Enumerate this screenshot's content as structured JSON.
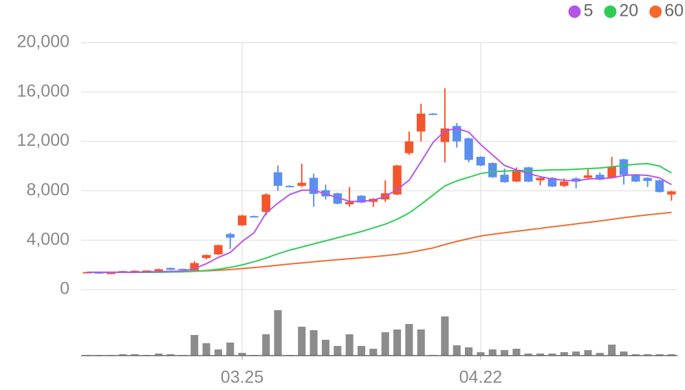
{
  "chart_data": {
    "type": "candlestick",
    "categories": [
      null,
      null,
      null,
      null,
      null,
      null,
      null,
      null,
      null,
      null,
      null,
      null,
      null,
      "03.25",
      null,
      null,
      null,
      null,
      null,
      null,
      null,
      null,
      null,
      null,
      null,
      null,
      null,
      null,
      null,
      null,
      null,
      null,
      null,
      "04.22",
      null,
      null,
      null,
      null,
      null,
      null,
      null,
      null,
      null,
      null,
      null,
      null,
      null,
      null,
      null,
      null
    ],
    "open": [
      1400,
      1400,
      1300,
      1400,
      1450,
      1480,
      1500,
      1750,
      1680,
      1500,
      2550,
      2850,
      4500,
      5200,
      5950,
      6300,
      9500,
      8400,
      8400,
      9050,
      8050,
      7800,
      6900,
      7600,
      7100,
      7300,
      7700,
      11050,
      12800,
      14250,
      11950,
      13250,
      12250,
      10750,
      10250,
      9300,
      8750,
      9900,
      8850,
      9050,
      8400,
      9000,
      9050,
      9300,
      9050,
      10550,
      9300,
      9050,
      8850,
      7700
    ],
    "high": [
      1450,
      1420,
      1380,
      1520,
      1550,
      1560,
      1700,
      1780,
      1700,
      2300,
      2850,
      3650,
      4600,
      6050,
      6000,
      7800,
      10050,
      8450,
      10200,
      9400,
      8500,
      7850,
      8300,
      7650,
      7400,
      8850,
      10100,
      12800,
      15050,
      14300,
      16300,
      13500,
      12300,
      10800,
      10300,
      9800,
      9900,
      9950,
      9100,
      9100,
      9000,
      9100,
      9800,
      9500,
      10750,
      10600,
      9350,
      9100,
      8900,
      8000
    ],
    "low": [
      1380,
      1300,
      1280,
      1380,
      1430,
      1460,
      1480,
      1580,
      1580,
      1450,
      2450,
      2800,
      3300,
      5150,
      5880,
      6000,
      8000,
      8320,
      8300,
      6700,
      7300,
      6900,
      6700,
      7000,
      6700,
      7100,
      7650,
      10900,
      12000,
      14150,
      10300,
      11500,
      10300,
      10000,
      9050,
      8650,
      8700,
      8700,
      8450,
      8300,
      8300,
      8200,
      8950,
      8850,
      9000,
      8500,
      8700,
      8300,
      7850,
      7200
    ],
    "close": [
      1420,
      1300,
      1360,
      1500,
      1530,
      1550,
      1650,
      1600,
      1620,
      2150,
      2800,
      3600,
      4200,
      6000,
      5900,
      7700,
      8400,
      8350,
      8650,
      7750,
      7550,
      6950,
      7100,
      7050,
      7350,
      7800,
      10050,
      12000,
      14250,
      14200,
      13050,
      12000,
      10500,
      10050,
      9100,
      8700,
      9650,
      8750,
      9050,
      8350,
      8750,
      8750,
      9250,
      8900,
      9950,
      9300,
      8750,
      8800,
      7900,
      7950
    ],
    "up_color": "#f4552a",
    "down_color": "#5b8ff0",
    "series": [
      {
        "name": "5",
        "color": "#b455ea",
        "values": [
          1400,
          1400,
          1400,
          1400,
          1410,
          1430,
          1450,
          1470,
          1500,
          1700,
          2100,
          2600,
          3000,
          3900,
          4600,
          6200,
          7000,
          7700,
          8050,
          8050,
          7750,
          7450,
          7150,
          7150,
          7250,
          7550,
          8100,
          8850,
          10350,
          11900,
          12850,
          13050,
          12750,
          11750,
          10900,
          10050,
          9700,
          9400,
          9150,
          8950,
          8850,
          8800,
          8950,
          9000,
          9050,
          9250,
          9300,
          9250,
          9050,
          8500
        ]
      },
      {
        "name": "20",
        "color": "#2ecc55",
        "values": [
          1400,
          1400,
          1400,
          1400,
          1400,
          1400,
          1400,
          1420,
          1440,
          1480,
          1550,
          1650,
          1800,
          2000,
          2250,
          2550,
          2900,
          3200,
          3450,
          3700,
          3950,
          4200,
          4450,
          4700,
          5000,
          5300,
          5700,
          6200,
          6900,
          7650,
          8400,
          8800,
          9100,
          9400,
          9550,
          9600,
          9650,
          9650,
          9650,
          9700,
          9700,
          9750,
          9800,
          9850,
          9950,
          10050,
          10150,
          10200,
          10000,
          9450
        ]
      },
      {
        "name": "60",
        "color": "#f26a30",
        "values": [
          1400,
          1400,
          1400,
          1400,
          1400,
          1410,
          1420,
          1430,
          1450,
          1480,
          1520,
          1560,
          1620,
          1700,
          1780,
          1870,
          1970,
          2070,
          2160,
          2250,
          2340,
          2420,
          2500,
          2580,
          2660,
          2750,
          2860,
          3000,
          3180,
          3370,
          3650,
          3900,
          4120,
          4340,
          4480,
          4600,
          4720,
          4840,
          4960,
          5080,
          5200,
          5320,
          5440,
          5560,
          5690,
          5820,
          5940,
          6050,
          6150,
          6250
        ]
      }
    ],
    "volume": [
      1,
      1,
      1,
      2,
      2,
      1,
      3,
      2,
      1,
      30,
      18,
      9,
      19,
      4,
      1,
      31,
      66,
      1,
      42,
      37,
      23,
      14,
      31,
      14,
      10,
      34,
      38,
      46,
      38,
      1,
      57,
      15,
      12,
      5,
      9,
      8,
      10,
      3,
      3,
      3,
      5,
      6,
      8,
      4,
      16,
      6,
      2,
      2,
      2,
      2
    ],
    "volume_color": "#8c8c8c",
    "ylim": [
      0,
      20000
    ],
    "yticks": [
      {
        "value": 0,
        "label": "0"
      },
      {
        "value": 4000,
        "label": "4,000"
      },
      {
        "value": 8000,
        "label": "8,000"
      },
      {
        "value": 12000,
        "label": "12,000"
      },
      {
        "value": 16000,
        "label": "16,000"
      },
      {
        "value": 20000,
        "label": "20,000"
      }
    ],
    "grid": true
  }
}
